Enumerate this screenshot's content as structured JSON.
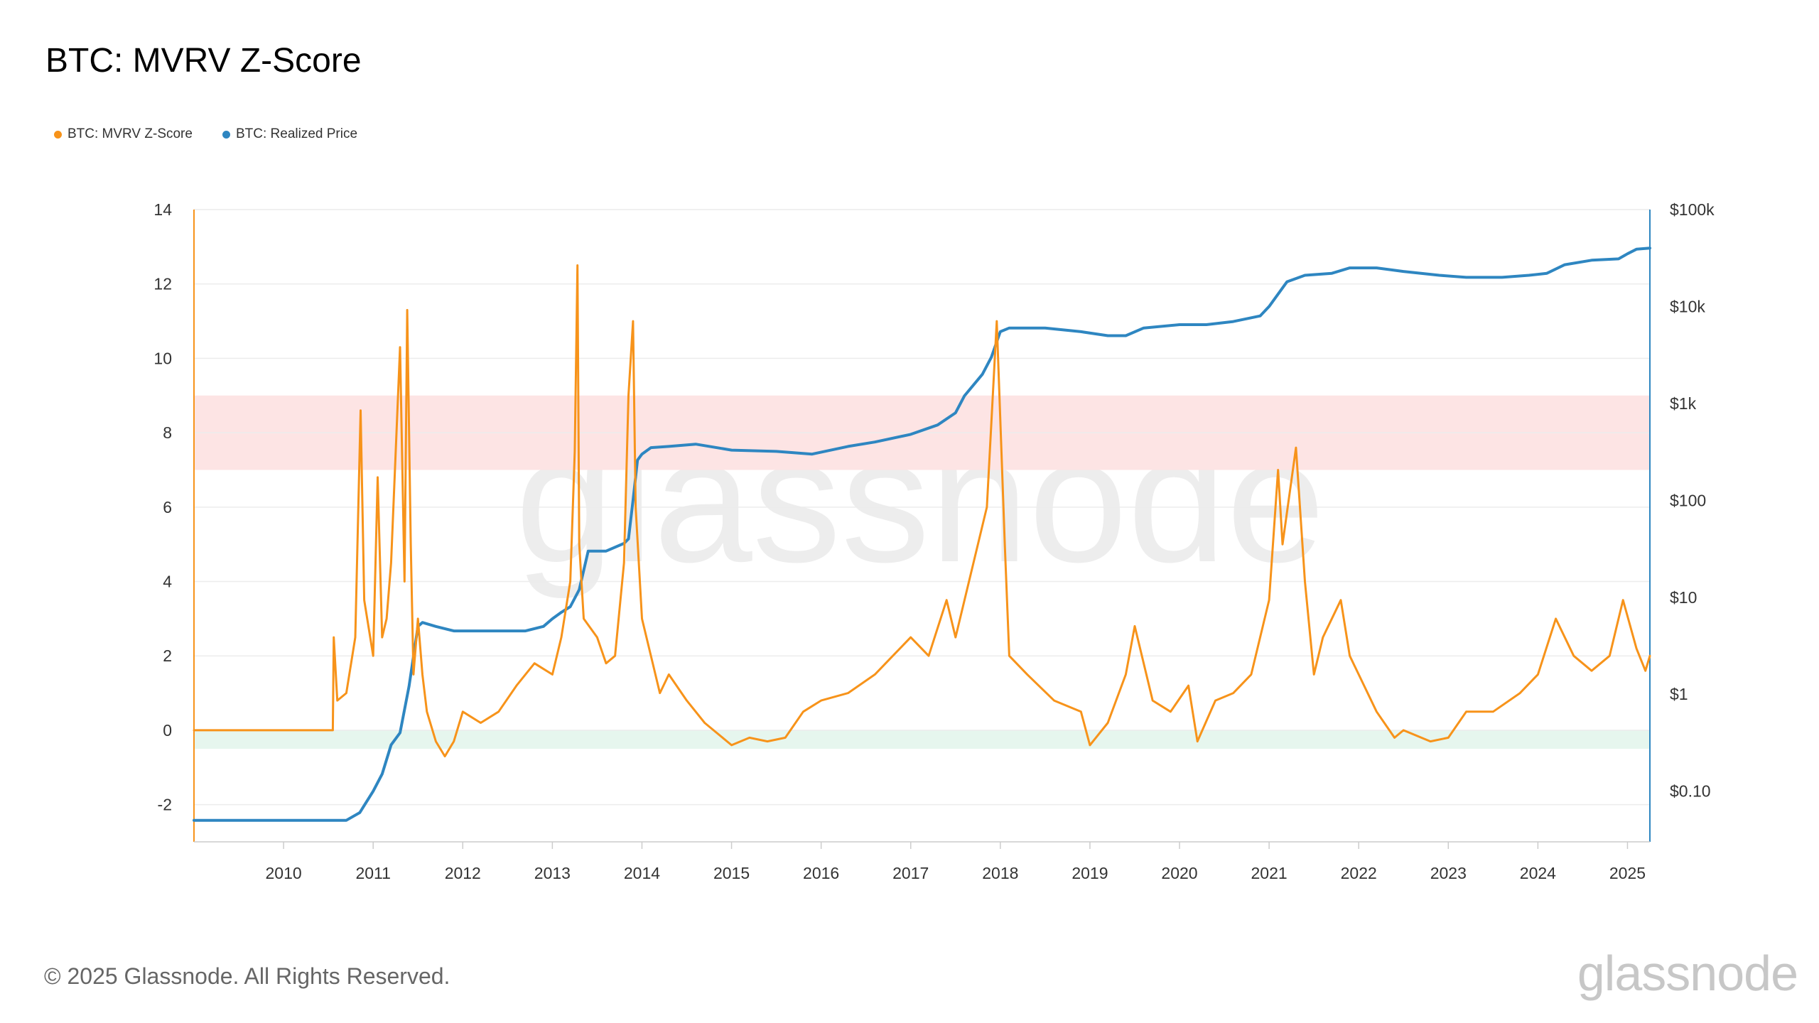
{
  "title": "BTC: MVRV Z-Score",
  "legend": [
    {
      "label": "BTC: MVRV Z-Score",
      "color": "#f7931a"
    },
    {
      "label": "BTC: Realized Price",
      "color": "#2e86c1"
    }
  ],
  "footer": {
    "copyright": "© 2025 Glassnode. All Rights Reserved.",
    "logo": "glassnode"
  },
  "watermark": "glassnode",
  "chart_data": {
    "type": "line",
    "title": "BTC: MVRV Z-Score",
    "x_range": [
      2009.0,
      2025.25
    ],
    "x_ticks": [
      "2010",
      "2011",
      "2012",
      "2013",
      "2014",
      "2015",
      "2016",
      "2017",
      "2018",
      "2019",
      "2020",
      "2021",
      "2022",
      "2023",
      "2024",
      "2025"
    ],
    "left_axis": {
      "range": [
        -3,
        14
      ],
      "ticks": [
        14,
        12,
        10,
        8,
        6,
        4,
        2,
        0,
        -2
      ],
      "tick_labels": [
        "14",
        "12",
        "10",
        "8",
        "6",
        "4",
        "2",
        "0",
        "-2"
      ]
    },
    "right_axis": {
      "scale": "log",
      "range": [
        0.03,
        100000
      ],
      "ticks": [
        100000,
        10000,
        1000,
        100,
        10,
        1,
        0.1
      ],
      "tick_labels": [
        "$100k",
        "$10k",
        "$1k",
        "$100",
        "$10",
        "$1",
        "$0.10"
      ]
    },
    "bands": [
      {
        "y_from": 7,
        "y_to": 9,
        "color": "#fde4e4"
      },
      {
        "y_from": -0.5,
        "y_to": 0,
        "color": "#e6f6ee"
      }
    ],
    "grid": true,
    "series": [
      {
        "name": "BTC: MVRV Z-Score",
        "axis": "left",
        "color": "#f7931a",
        "x": [
          2009.0,
          2010.55,
          2010.56,
          2010.6,
          2010.7,
          2010.8,
          2010.86,
          2010.9,
          2011.0,
          2011.05,
          2011.1,
          2011.15,
          2011.2,
          2011.3,
          2011.35,
          2011.38,
          2011.42,
          2011.45,
          2011.5,
          2011.55,
          2011.6,
          2011.7,
          2011.8,
          2011.9,
          2012.0,
          2012.2,
          2012.4,
          2012.6,
          2012.8,
          2013.0,
          2013.1,
          2013.2,
          2013.25,
          2013.28,
          2013.3,
          2013.35,
          2013.5,
          2013.6,
          2013.7,
          2013.8,
          2013.85,
          2013.9,
          2013.93,
          2014.0,
          2014.1,
          2014.2,
          2014.3,
          2014.5,
          2014.7,
          2015.0,
          2015.2,
          2015.4,
          2015.6,
          2015.8,
          2016.0,
          2016.3,
          2016.6,
          2016.8,
          2017.0,
          2017.2,
          2017.4,
          2017.5,
          2017.7,
          2017.85,
          2017.96,
          2018.05,
          2018.1,
          2018.3,
          2018.6,
          2018.9,
          2019.0,
          2019.2,
          2019.4,
          2019.5,
          2019.7,
          2019.9,
          2020.1,
          2020.2,
          2020.4,
          2020.6,
          2020.8,
          2021.0,
          2021.1,
          2021.15,
          2021.3,
          2021.4,
          2021.5,
          2021.6,
          2021.8,
          2021.9,
          2022.0,
          2022.2,
          2022.4,
          2022.5,
          2022.8,
          2023.0,
          2023.2,
          2023.5,
          2023.8,
          2024.0,
          2024.2,
          2024.4,
          2024.6,
          2024.8,
          2024.95,
          2025.1,
          2025.2,
          2025.25
        ],
        "values": [
          0.0,
          0.0,
          2.5,
          0.8,
          1.0,
          2.5,
          8.6,
          3.5,
          2.0,
          6.8,
          2.5,
          3.0,
          4.5,
          10.3,
          4.0,
          11.3,
          5.0,
          1.5,
          3.0,
          1.5,
          0.5,
          -0.3,
          -0.7,
          -0.3,
          0.5,
          0.2,
          0.5,
          1.2,
          1.8,
          1.5,
          2.5,
          4.0,
          7.5,
          12.5,
          5.0,
          3.0,
          2.5,
          1.8,
          2.0,
          4.5,
          9.0,
          11.0,
          6.0,
          3.0,
          2.0,
          1.0,
          1.5,
          0.8,
          0.2,
          -0.4,
          -0.2,
          -0.3,
          -0.2,
          0.5,
          0.8,
          1.0,
          1.5,
          2.0,
          2.5,
          2.0,
          3.5,
          2.5,
          4.5,
          6.0,
          11.0,
          5.0,
          2.0,
          1.5,
          0.8,
          0.5,
          -0.4,
          0.2,
          1.5,
          2.8,
          0.8,
          0.5,
          1.2,
          -0.3,
          0.8,
          1.0,
          1.5,
          3.5,
          7.0,
          5.0,
          7.6,
          4.0,
          1.5,
          2.5,
          3.5,
          2.0,
          1.5,
          0.5,
          -0.2,
          0.0,
          -0.3,
          -0.2,
          0.5,
          0.5,
          1.0,
          1.5,
          3.0,
          2.0,
          1.6,
          2.0,
          3.5,
          2.2,
          1.6,
          2.0
        ]
      },
      {
        "name": "BTC: Realized Price",
        "axis": "right",
        "color": "#2e86c1",
        "x": [
          2009.0,
          2010.5,
          2010.7,
          2010.85,
          2011.0,
          2011.1,
          2011.2,
          2011.3,
          2011.4,
          2011.5,
          2011.55,
          2011.7,
          2011.9,
          2012.0,
          2012.2,
          2012.5,
          2012.7,
          2012.9,
          2013.0,
          2013.1,
          2013.2,
          2013.3,
          2013.4,
          2013.6,
          2013.8,
          2013.85,
          2013.9,
          2013.95,
          2014.0,
          2014.1,
          2014.3,
          2014.6,
          2015.0,
          2015.5,
          2015.9,
          2016.3,
          2016.6,
          2017.0,
          2017.3,
          2017.5,
          2017.6,
          2017.8,
          2017.9,
          2018.0,
          2018.1,
          2018.5,
          2018.9,
          2019.2,
          2019.4,
          2019.6,
          2020.0,
          2020.3,
          2020.6,
          2020.9,
          2021.0,
          2021.2,
          2021.4,
          2021.7,
          2021.9,
          2022.2,
          2022.5,
          2022.9,
          2023.2,
          2023.6,
          2023.9,
          2024.1,
          2024.3,
          2024.6,
          2024.9,
          2025.0,
          2025.1,
          2025.25
        ],
        "values": [
          0.05,
          0.05,
          0.05,
          0.06,
          0.1,
          0.15,
          0.3,
          0.4,
          1.2,
          5.0,
          5.5,
          5.0,
          4.5,
          4.5,
          4.5,
          4.5,
          4.5,
          5.0,
          6.0,
          7.0,
          8.0,
          12.0,
          30.0,
          30.0,
          36.0,
          40.0,
          100.0,
          260.0,
          300.0,
          350.0,
          360.0,
          380.0,
          330.0,
          320.0,
          300.0,
          360.0,
          400.0,
          480.0,
          600.0,
          800.0,
          1200.0,
          2000.0,
          3000.0,
          5500.0,
          6000.0,
          6000.0,
          5500.0,
          5000.0,
          5000.0,
          6000.0,
          6500.0,
          6500.0,
          7000.0,
          8000.0,
          10000.0,
          18000.0,
          21000.0,
          22000.0,
          25000.0,
          25000.0,
          23000.0,
          21000.0,
          20000.0,
          20000.0,
          21000.0,
          22000.0,
          27000.0,
          30000.0,
          31000.0,
          35000.0,
          39000.0,
          40000.0
        ]
      }
    ]
  }
}
